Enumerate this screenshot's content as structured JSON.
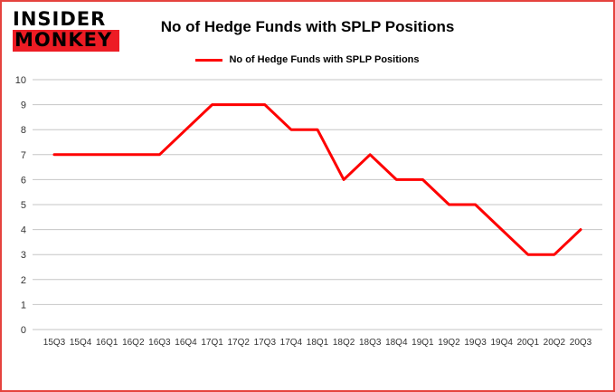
{
  "logo": {
    "line1": "INSIDER",
    "line2": "MONKEY"
  },
  "title": "No of Hedge Funds with SPLP Positions",
  "legend": "No of Hedge Funds with SPLP Positions",
  "colors": {
    "line": "#fe0000",
    "frame_border": "#e5433e",
    "grid": "#c6c6c6",
    "logo_red": "#ed1c24",
    "axis_text": "#333333",
    "title_text": "#000000"
  },
  "chart_data": {
    "type": "line",
    "title": "No of Hedge Funds with SPLP Positions",
    "categories": [
      "15Q3",
      "15Q4",
      "16Q1",
      "16Q2",
      "16Q3",
      "16Q4",
      "17Q1",
      "17Q2",
      "17Q3",
      "17Q4",
      "18Q1",
      "18Q2",
      "18Q3",
      "18Q4",
      "19Q1",
      "19Q2",
      "19Q3",
      "19Q4",
      "20Q1",
      "20Q2",
      "20Q3"
    ],
    "series": [
      {
        "name": "No of Hedge Funds with SPLP Positions",
        "values": [
          7,
          7,
          7,
          7,
          7,
          8,
          9,
          9,
          9,
          8,
          8,
          6,
          7,
          6,
          6,
          5,
          5,
          4,
          3,
          3,
          4
        ]
      }
    ],
    "xlabel": "",
    "ylabel": "",
    "ylim": [
      0,
      10
    ],
    "yticks": [
      0,
      1,
      2,
      3,
      4,
      5,
      6,
      7,
      8,
      9,
      10
    ],
    "grid": true,
    "legend_position": "top"
  }
}
